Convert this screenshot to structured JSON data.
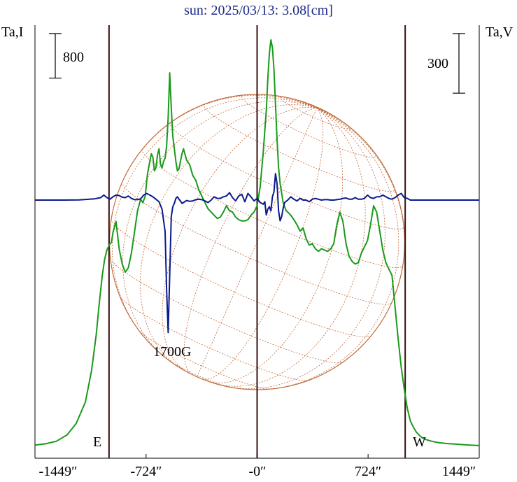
{
  "chart_data": {
    "type": "line",
    "title": "sun: 2025/03/13: 3.08[cm]",
    "y_left_label": "Ta,I",
    "y_right_label": "Ta,V",
    "scale_bar_left": "800",
    "scale_bar_right": "300",
    "annotation": "1700G",
    "marker_east": "E",
    "marker_west": "W",
    "xlim": [
      -1449,
      1449
    ],
    "x_tick_labels": [
      "-1449″",
      "-724″",
      "-0″",
      "724″",
      "1449″"
    ],
    "x_ticks": [
      -1449,
      -724,
      0,
      724,
      1449
    ],
    "vertical_lines": [
      -966,
      0,
      966
    ],
    "solar_disc_radius": 966,
    "grid": false,
    "series": [
      {
        "key": "I",
        "color": "#1a9a1a",
        "x": [
          -1449,
          -1380,
          -1310,
          -1240,
          -1180,
          -1120,
          -1080,
          -1050,
          -1030,
          -1010,
          -995,
          -980,
          -968,
          -960,
          -950,
          -940,
          -920,
          -900,
          -880,
          -860,
          -840,
          -820,
          -800,
          -780,
          -760,
          -745,
          -730,
          -715,
          -700,
          -690,
          -680,
          -670,
          -660,
          -650,
          -640,
          -630,
          -620,
          -610,
          -600,
          -590,
          -580,
          -570,
          -560,
          -550,
          -540,
          -530,
          -520,
          -510,
          -500,
          -490,
          -480,
          -460,
          -440,
          -420,
          -400,
          -380,
          -360,
          -340,
          -320,
          -300,
          -280,
          -260,
          -240,
          -220,
          -200,
          -180,
          -160,
          -140,
          -120,
          -100,
          -80,
          -60,
          -40,
          -20,
          0,
          20,
          40,
          60,
          70,
          80,
          90,
          100,
          110,
          120,
          130,
          140,
          150,
          160,
          170,
          180,
          190,
          200,
          220,
          240,
          260,
          280,
          300,
          320,
          340,
          360,
          380,
          400,
          420,
          440,
          460,
          480,
          500,
          520,
          540,
          560,
          580,
          600,
          620,
          640,
          660,
          680,
          700,
          720,
          740,
          760,
          780,
          800,
          820,
          840,
          860,
          880,
          900,
          920,
          940,
          960,
          980,
          1000,
          1020,
          1040,
          1060,
          1080,
          1110,
          1140,
          1180,
          1230,
          1290,
          1350,
          1400,
          1449
        ],
        "y": [
          20,
          40,
          80,
          180,
          360,
          700,
          1200,
          1750,
          2250,
          2700,
          2950,
          3100,
          3160,
          3200,
          3220,
          3380,
          3550,
          3120,
          2880,
          2750,
          2820,
          3050,
          3380,
          3720,
          3900,
          3850,
          3950,
          4300,
          4500,
          4620,
          4570,
          4350,
          4400,
          4600,
          4700,
          4450,
          4400,
          4500,
          4550,
          4750,
          5200,
          5900,
          5350,
          4900,
          4700,
          4500,
          4350,
          4380,
          4500,
          4620,
          4700,
          4520,
          4450,
          4280,
          4200,
          4050,
          3950,
          3850,
          3750,
          3700,
          3650,
          3600,
          3620,
          3700,
          3800,
          3720,
          3700,
          3620,
          3580,
          3560,
          3560,
          3580,
          3650,
          3700,
          3800,
          4100,
          4650,
          5300,
          5800,
          6200,
          6420,
          6300,
          5950,
          5400,
          4850,
          4400,
          4150,
          4000,
          3850,
          3780,
          3720,
          3700,
          3650,
          3580,
          3500,
          3400,
          3450,
          3280,
          3180,
          3200,
          3120,
          3080,
          3120,
          3100,
          3080,
          3120,
          3200,
          3500,
          3700,
          3550,
          3200,
          3000,
          2920,
          2880,
          2900,
          3050,
          3150,
          3250,
          3500,
          3800,
          3700,
          3400,
          3100,
          2900,
          2800,
          2700,
          2200,
          1700,
          1250,
          900,
          600,
          400,
          300,
          220,
          170,
          130,
          100,
          80,
          60,
          45,
          35,
          25,
          18,
          12
        ]
      },
      {
        "key": "V",
        "color": "#0a1a8c",
        "x": [
          -1449,
          -1260,
          -1160,
          -1060,
          -1020,
          -1000,
          -980,
          -960,
          -940,
          -920,
          -900,
          -880,
          -860,
          -840,
          -820,
          -800,
          -780,
          -760,
          -740,
          -720,
          -700,
          -680,
          -660,
          -640,
          -620,
          -600,
          -590,
          -580,
          -570,
          -560,
          -550,
          -540,
          -530,
          -520,
          -510,
          -500,
          -490,
          -480,
          -460,
          -440,
          -420,
          -400,
          -380,
          -360,
          -340,
          -320,
          -300,
          -280,
          -260,
          -240,
          -220,
          -200,
          -180,
          -160,
          -140,
          -120,
          -100,
          -80,
          -60,
          -40,
          -20,
          0,
          20,
          40,
          50,
          60,
          70,
          80,
          90,
          100,
          110,
          120,
          130,
          140,
          150,
          160,
          170,
          180,
          200,
          220,
          240,
          260,
          280,
          300,
          320,
          340,
          360,
          380,
          400,
          420,
          440,
          460,
          480,
          500,
          520,
          540,
          560,
          580,
          600,
          620,
          640,
          660,
          680,
          700,
          720,
          740,
          760,
          780,
          800,
          820,
          840,
          860,
          880,
          900,
          920,
          940,
          960,
          980,
          1000,
          1040,
          1080,
          1200,
          1449
        ],
        "y": [
          0,
          0,
          2,
          15,
          30,
          60,
          30,
          10,
          40,
          60,
          55,
          35,
          30,
          50,
          20,
          5,
          5,
          15,
          60,
          80,
          60,
          40,
          10,
          -20,
          -110,
          -380,
          -1100,
          -1600,
          -900,
          -200,
          -80,
          -40,
          20,
          40,
          10,
          -10,
          -40,
          -30,
          -5,
          -15,
          -10,
          5,
          10,
          5,
          -10,
          -30,
          0,
          40,
          20,
          20,
          40,
          50,
          90,
          30,
          -10,
          50,
          70,
          -20,
          80,
          40,
          -10,
          20,
          -30,
          -50,
          -20,
          -180,
          -110,
          -80,
          -130,
          40,
          100,
          320,
          200,
          -130,
          -250,
          -200,
          -100,
          -30,
          0,
          40,
          10,
          -10,
          20,
          0,
          0,
          -20,
          10,
          20,
          10,
          0,
          5,
          5,
          0,
          0,
          5,
          10,
          20,
          25,
          10,
          10,
          30,
          10,
          10,
          20,
          60,
          30,
          20,
          40,
          40,
          60,
          40,
          20,
          10,
          30,
          60,
          80,
          30,
          20,
          0,
          0,
          0,
          0,
          0
        ]
      }
    ]
  }
}
